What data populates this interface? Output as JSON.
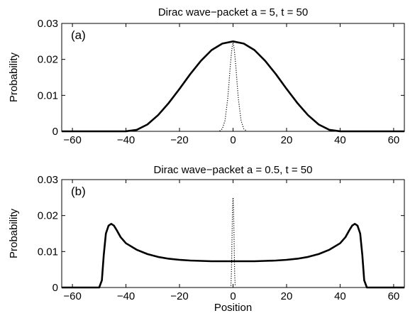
{
  "chart_data": [
    {
      "type": "line",
      "panel_label": "(a)",
      "title": "Dirac wave−packet a = 5, t = 50",
      "xlabel": "",
      "ylabel": "Probability",
      "xlim": [
        -64,
        64
      ],
      "ylim": [
        0,
        0.03
      ],
      "xticks": [
        -60,
        -40,
        -20,
        0,
        20,
        40,
        60
      ],
      "xtick_labels": [
        "−60",
        "−40",
        "−20",
        "0",
        "20",
        "40",
        "60"
      ],
      "yticks": [
        0,
        0.01,
        0.02,
        0.03
      ],
      "ytick_labels": [
        "0",
        "0.01",
        "0.02",
        "0.03"
      ],
      "series": [
        {
          "style": "solid",
          "x": [
            -64,
            -44,
            -40,
            -36,
            -32,
            -28,
            -24,
            -20,
            -16,
            -12,
            -8,
            -4,
            0,
            4,
            8,
            12,
            16,
            20,
            24,
            28,
            32,
            36,
            40,
            44,
            64
          ],
          "y": [
            0,
            0,
            2e-05,
            0.0004,
            0.0019,
            0.0045,
            0.0079,
            0.0118,
            0.0159,
            0.0196,
            0.0226,
            0.0244,
            0.025,
            0.0244,
            0.0226,
            0.0196,
            0.0159,
            0.0118,
            0.0079,
            0.0045,
            0.0019,
            0.0004,
            2e-05,
            0,
            0
          ]
        },
        {
          "style": "dotted",
          "x": [
            -5,
            -4,
            -3,
            -2,
            -1.5,
            -1,
            -0.5,
            0,
            0.5,
            1,
            1.5,
            2,
            3,
            4,
            5
          ],
          "y": [
            0.0001,
            0.0007,
            0.003,
            0.009,
            0.0135,
            0.0185,
            0.0225,
            0.025,
            0.0225,
            0.0185,
            0.0135,
            0.009,
            0.003,
            0.0007,
            0.0001
          ]
        }
      ]
    },
    {
      "type": "line",
      "panel_label": "(b)",
      "title": "Dirac wave−packet a = 0.5, t = 50",
      "xlabel": "Position",
      "ylabel": "Probability",
      "xlim": [
        -64,
        64
      ],
      "ylim": [
        0,
        0.03
      ],
      "xticks": [
        -60,
        -40,
        -20,
        0,
        20,
        40,
        60
      ],
      "xtick_labels": [
        "−60",
        "−40",
        "−20",
        "0",
        "20",
        "40",
        "60"
      ],
      "yticks": [
        0,
        0.01,
        0.02,
        0.03
      ],
      "ytick_labels": [
        "0",
        "0.01",
        "0.02",
        "0.03"
      ],
      "series": [
        {
          "style": "solid",
          "x": [
            -64,
            -50,
            -49,
            -48.3,
            -47.5,
            -46.5,
            -45.5,
            -44.5,
            -43.5,
            -42,
            -40,
            -36,
            -32,
            -28,
            -24,
            -20,
            -16,
            -12,
            -8,
            -4,
            0,
            4,
            8,
            12,
            16,
            20,
            24,
            28,
            32,
            36,
            40,
            42,
            43.5,
            44.5,
            45.5,
            46.5,
            47.5,
            48.3,
            49,
            50,
            64
          ],
          "y": [
            0,
            0,
            0.002,
            0.009,
            0.015,
            0.0172,
            0.0177,
            0.0172,
            0.016,
            0.014,
            0.0123,
            0.0105,
            0.0093,
            0.0085,
            0.008,
            0.0077,
            0.0075,
            0.0074,
            0.0073,
            0.0073,
            0.0073,
            0.0073,
            0.0073,
            0.0074,
            0.0075,
            0.0077,
            0.008,
            0.0085,
            0.0093,
            0.0105,
            0.0123,
            0.014,
            0.016,
            0.0172,
            0.0177,
            0.0172,
            0.015,
            0.009,
            0.002,
            0,
            0
          ]
        },
        {
          "style": "dotted",
          "x": [
            -0.8,
            -0.6,
            -0.4,
            -0.2,
            0,
            0.2,
            0.4,
            0.6,
            0.8
          ],
          "y": [
            0.0005,
            0.004,
            0.013,
            0.0215,
            0.025,
            0.0215,
            0.013,
            0.004,
            0.0005
          ]
        }
      ]
    }
  ]
}
